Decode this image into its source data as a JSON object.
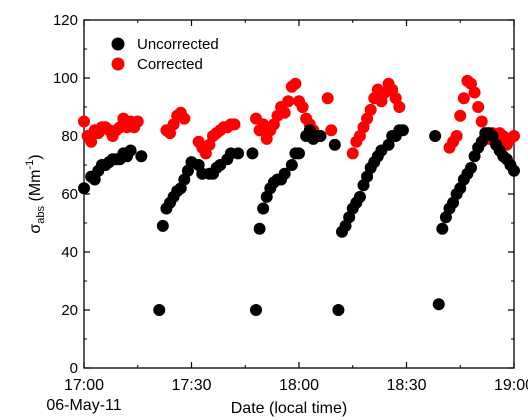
{
  "chart_data": {
    "type": "scatter",
    "title": "",
    "ylabel": "σabs (Mm-1)",
    "ylabel_parts": {
      "sigma": "σ",
      "sub": "abs",
      "unit_open": " (Mm",
      "sup": "-1",
      "unit_close": ")"
    },
    "xlabel": "Date (local time)",
    "date_label": "06-May-11",
    "xlim": [
      "17:00",
      "19:00"
    ],
    "ylim": [
      0,
      120
    ],
    "x_ticks": [
      "17:00",
      "17:30",
      "18:00",
      "18:30",
      "19:00"
    ],
    "y_ticks": [
      "0",
      "20",
      "40",
      "60",
      "80",
      "100",
      "120"
    ],
    "grid": false,
    "legend_position": "top-left",
    "series": [
      {
        "name": "Uncorrected",
        "color": "#000000",
        "points": [
          [
            "17:00",
            62
          ],
          [
            "17:02",
            66
          ],
          [
            "17:03",
            65
          ],
          [
            "17:04",
            68
          ],
          [
            "17:05",
            70
          ],
          [
            "17:06",
            70
          ],
          [
            "17:07",
            71
          ],
          [
            "17:08",
            72
          ],
          [
            "17:09",
            72
          ],
          [
            "17:10",
            72
          ],
          [
            "17:11",
            74
          ],
          [
            "17:12",
            73
          ],
          [
            "17:13",
            75
          ],
          [
            "17:16",
            73
          ],
          [
            "17:21",
            20
          ],
          [
            "17:22",
            49
          ],
          [
            "17:23",
            55
          ],
          [
            "17:24",
            57
          ],
          [
            "17:25",
            59
          ],
          [
            "17:26",
            61
          ],
          [
            "17:27",
            62
          ],
          [
            "17:28",
            65
          ],
          [
            "17:29",
            68
          ],
          [
            "17:30",
            71
          ],
          [
            "17:32",
            70
          ],
          [
            "17:33",
            67
          ],
          [
            "17:35",
            67
          ],
          [
            "17:36",
            67
          ],
          [
            "17:37",
            69
          ],
          [
            "17:38",
            70
          ],
          [
            "17:40",
            72
          ],
          [
            "17:41",
            74
          ],
          [
            "17:43",
            74
          ],
          [
            "17:47",
            74
          ],
          [
            "17:48",
            20
          ],
          [
            "17:49",
            48
          ],
          [
            "17:50",
            55
          ],
          [
            "17:51",
            59
          ],
          [
            "17:52",
            62
          ],
          [
            "17:53",
            64
          ],
          [
            "17:54",
            65
          ],
          [
            "17:55",
            65
          ],
          [
            "17:56",
            67
          ],
          [
            "17:58",
            70
          ],
          [
            "17:59",
            74
          ],
          [
            "18:00",
            74
          ],
          [
            "18:02",
            80
          ],
          [
            "18:03",
            82
          ],
          [
            "18:04",
            79
          ],
          [
            "18:05",
            80
          ],
          [
            "18:06",
            80
          ],
          [
            "18:10",
            77
          ],
          [
            "18:11",
            20
          ],
          [
            "18:12",
            47
          ],
          [
            "18:13",
            49
          ],
          [
            "18:14",
            52
          ],
          [
            "18:15",
            55
          ],
          [
            "18:16",
            57
          ],
          [
            "18:17",
            59
          ],
          [
            "18:18",
            63
          ],
          [
            "18:19",
            66
          ],
          [
            "18:20",
            69
          ],
          [
            "18:21",
            71
          ],
          [
            "18:22",
            73
          ],
          [
            "18:23",
            75
          ],
          [
            "18:25",
            77
          ],
          [
            "18:26",
            80
          ],
          [
            "18:27",
            80
          ],
          [
            "18:28",
            82
          ],
          [
            "18:29",
            82
          ],
          [
            "18:38",
            80
          ],
          [
            "18:39",
            22
          ],
          [
            "18:40",
            48
          ],
          [
            "18:41",
            52
          ],
          [
            "18:42",
            55
          ],
          [
            "18:43",
            57
          ],
          [
            "18:44",
            60
          ],
          [
            "18:45",
            62
          ],
          [
            "18:46",
            65
          ],
          [
            "18:47",
            67
          ],
          [
            "18:48",
            69
          ],
          [
            "18:49",
            73
          ],
          [
            "18:50",
            76
          ],
          [
            "18:51",
            78
          ],
          [
            "18:52",
            81
          ],
          [
            "18:53",
            81
          ],
          [
            "18:54",
            80
          ],
          [
            "18:55",
            77
          ],
          [
            "18:56",
            75
          ],
          [
            "18:57",
            73
          ],
          [
            "18:58",
            72
          ],
          [
            "18:59",
            70
          ],
          [
            "19:00",
            68
          ]
        ]
      },
      {
        "name": "Corrected",
        "color": "#ff0000",
        "points": [
          [
            "17:00",
            85
          ],
          [
            "17:01",
            80
          ],
          [
            "17:02",
            78
          ],
          [
            "17:03",
            82
          ],
          [
            "17:04",
            81
          ],
          [
            "17:05",
            83
          ],
          [
            "17:06",
            83
          ],
          [
            "17:07",
            82
          ],
          [
            "17:08",
            80
          ],
          [
            "17:09",
            82
          ],
          [
            "17:10",
            83
          ],
          [
            "17:11",
            86
          ],
          [
            "17:12",
            83
          ],
          [
            "17:13",
            85
          ],
          [
            "17:14",
            83
          ],
          [
            "17:15",
            85
          ],
          [
            "17:23",
            82
          ],
          [
            "17:24",
            81
          ],
          [
            "17:25",
            84
          ],
          [
            "17:26",
            87
          ],
          [
            "17:27",
            88
          ],
          [
            "17:28",
            86
          ],
          [
            "17:32",
            78
          ],
          [
            "17:33",
            76
          ],
          [
            "17:34",
            74
          ],
          [
            "17:35",
            77
          ],
          [
            "17:36",
            80
          ],
          [
            "17:37",
            81
          ],
          [
            "17:38",
            82
          ],
          [
            "17:39",
            83
          ],
          [
            "17:40",
            83
          ],
          [
            "17:41",
            84
          ],
          [
            "17:42",
            84
          ],
          [
            "17:48",
            86
          ],
          [
            "17:49",
            82
          ],
          [
            "17:50",
            84
          ],
          [
            "17:51",
            79
          ],
          [
            "17:52",
            82
          ],
          [
            "17:53",
            84
          ],
          [
            "17:54",
            87
          ],
          [
            "17:55",
            90
          ],
          [
            "17:56",
            88
          ],
          [
            "17:57",
            92
          ],
          [
            "17:58",
            97
          ],
          [
            "17:59",
            98
          ],
          [
            "18:00",
            92
          ],
          [
            "18:01",
            90
          ],
          [
            "18:02",
            86
          ],
          [
            "18:03",
            84
          ],
          [
            "18:04",
            82
          ],
          [
            "18:08",
            93
          ],
          [
            "18:09",
            82
          ],
          [
            "18:15",
            74
          ],
          [
            "18:16",
            78
          ],
          [
            "18:17",
            80
          ],
          [
            "18:18",
            83
          ],
          [
            "18:19",
            86
          ],
          [
            "18:20",
            89
          ],
          [
            "18:21",
            93
          ],
          [
            "18:22",
            96
          ],
          [
            "18:23",
            92
          ],
          [
            "18:24",
            95
          ],
          [
            "18:25",
            98
          ],
          [
            "18:26",
            96
          ],
          [
            "18:27",
            93
          ],
          [
            "18:28",
            90
          ],
          [
            "18:42",
            76
          ],
          [
            "18:43",
            78
          ],
          [
            "18:44",
            80
          ],
          [
            "18:45",
            87
          ],
          [
            "18:46",
            93
          ],
          [
            "18:47",
            99
          ],
          [
            "18:48",
            98
          ],
          [
            "18:49",
            95
          ],
          [
            "18:50",
            90
          ],
          [
            "18:51",
            85
          ],
          [
            "18:52",
            80
          ],
          [
            "18:53",
            79
          ],
          [
            "18:54",
            81
          ],
          [
            "18:55",
            78
          ],
          [
            "18:56",
            81
          ],
          [
            "18:57",
            80
          ],
          [
            "18:58",
            77
          ],
          [
            "18:59",
            79
          ],
          [
            "19:00",
            80
          ]
        ]
      }
    ]
  }
}
